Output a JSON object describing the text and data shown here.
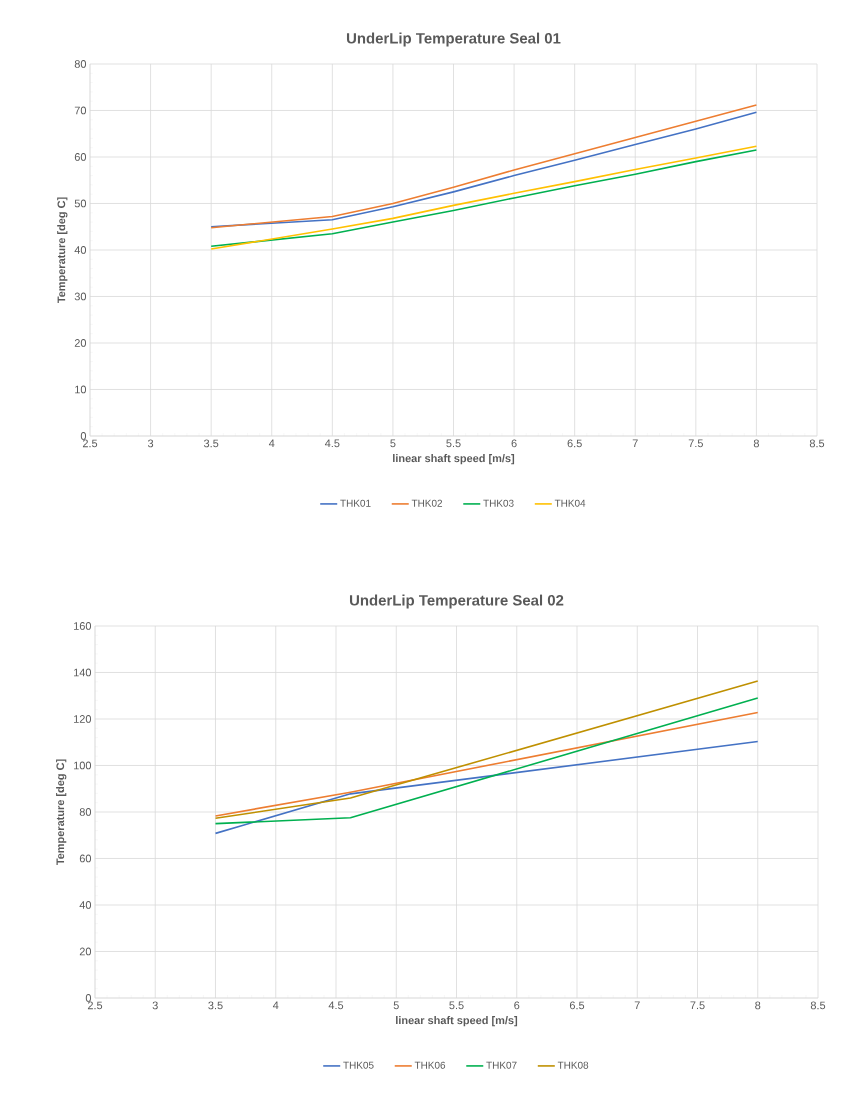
{
  "chart_data": [
    {
      "type": "line",
      "title": "UnderLip Temperature Seal 01",
      "xlabel": "linear shaft speed [m/s]",
      "ylabel": "Temperature [deg C]",
      "xlim": [
        2.5,
        8.5
      ],
      "xticks": [
        2.5,
        3,
        3.5,
        4,
        4.5,
        5,
        5.5,
        6,
        6.5,
        7,
        7.5,
        8,
        8.5
      ],
      "ylim": [
        0,
        80
      ],
      "yticks": [
        0,
        10,
        20,
        30,
        40,
        50,
        60,
        70,
        80
      ],
      "grid": true,
      "legend": "bottom",
      "series": [
        {
          "name": "THK01",
          "color": "#4472c4",
          "x": [
            3.5,
            4.5,
            5,
            5.5,
            6,
            6.5,
            7,
            7.5,
            8
          ],
          "values": [
            45,
            46.5,
            49.3,
            52.5,
            56,
            59.3,
            62.7,
            66,
            69.6
          ]
        },
        {
          "name": "THK02",
          "color": "#ed7d31",
          "x": [
            3.5,
            4.5,
            5,
            5.5,
            6,
            6.5,
            7,
            7.5,
            8
          ],
          "values": [
            44.8,
            47.2,
            50,
            53.5,
            57.2,
            60.7,
            64.2,
            67.7,
            71.2
          ]
        },
        {
          "name": "THK03",
          "color": "#00b050",
          "x": [
            3.5,
            4.5,
            5,
            5.5,
            6,
            6.5,
            7,
            7.5,
            8
          ],
          "values": [
            40.8,
            43.5,
            46,
            48.5,
            51.2,
            53.8,
            56.3,
            59,
            61.5
          ]
        },
        {
          "name": "THK04",
          "color": "#ffc000",
          "x": [
            3.5,
            4.5,
            5,
            5.5,
            6,
            6.5,
            7,
            7.5,
            8
          ],
          "values": [
            40.2,
            44.5,
            46.8,
            49.6,
            52.2,
            54.7,
            57.3,
            59.8,
            62.3
          ]
        }
      ]
    },
    {
      "type": "line",
      "title": "UnderLip Temperature Seal 02",
      "xlabel": "linear shaft speed [m/s]",
      "ylabel": "Temperature [deg C]",
      "xlim": [
        2.5,
        8.5
      ],
      "xticks": [
        2.5,
        3,
        3.5,
        4,
        4.5,
        5,
        5.5,
        6,
        6.5,
        7,
        7.5,
        8,
        8.5
      ],
      "ylim": [
        0,
        160
      ],
      "yticks": [
        0,
        20,
        40,
        60,
        80,
        100,
        120,
        140,
        160
      ],
      "grid": true,
      "legend": "bottom",
      "series": [
        {
          "name": "THK05",
          "color": "#4472c4",
          "x": [
            3.5,
            4.62,
            8
          ],
          "values": [
            70.8,
            87.8,
            110.3
          ]
        },
        {
          "name": "THK06",
          "color": "#ed7d31",
          "x": [
            3.5,
            4.62,
            8
          ],
          "values": [
            78.3,
            88.5,
            122.8
          ]
        },
        {
          "name": "THK07",
          "color": "#00b050",
          "x": [
            3.5,
            4.62,
            8
          ],
          "values": [
            75,
            77.5,
            129
          ]
        },
        {
          "name": "THK08",
          "color": "#bf9000",
          "x": [
            3.5,
            4.62,
            8
          ],
          "values": [
            77.3,
            86,
            136.3
          ]
        }
      ]
    }
  ]
}
